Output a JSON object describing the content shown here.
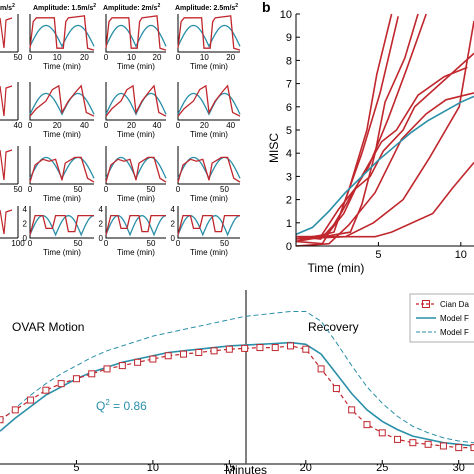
{
  "colors": {
    "data": "#c0272d",
    "model": "#2a8fa8",
    "axis": "#000000",
    "vline": "#555555"
  },
  "panel_a": {
    "column_titles": [
      "Amplitude: 1.5m/s",
      "Amplitude: 2m/s",
      "Amplitude: 2.5m/s"
    ],
    "title_suffix": "2",
    "first_title_fragment": "m/s",
    "xlabel": "Time (min)",
    "rows": [
      {
        "left_ytick": "",
        "left_xtick": "50",
        "xticks": [
          [
            "0",
            "10",
            "20"
          ],
          [
            "0",
            "10",
            "20"
          ],
          [
            "0",
            "10",
            "20"
          ]
        ],
        "yticks": []
      },
      {
        "left_ytick": "",
        "left_xtick": "40",
        "xticks": [
          [
            "0",
            "20",
            "40"
          ],
          [
            "0",
            "20",
            "40"
          ],
          [
            "0",
            "20",
            "40"
          ]
        ],
        "yticks": []
      },
      {
        "left_ytick": "",
        "left_xtick": "50",
        "xticks": [
          [
            "0",
            "50"
          ],
          [
            "0",
            "50"
          ],
          [
            "0",
            "50"
          ]
        ],
        "yticks": []
      },
      {
        "left_ytick": "",
        "left_xtick": "100",
        "xticks": [
          [
            "0",
            "50"
          ],
          [
            "0",
            "50"
          ],
          [
            "0",
            "50"
          ]
        ],
        "yticks": [
          [
            "4",
            "2",
            "0"
          ],
          [
            "4",
            "2",
            "0"
          ],
          [
            "4",
            "2",
            "0"
          ]
        ]
      }
    ]
  },
  "panel_b": {
    "letter": "b",
    "ylabel": "MISC",
    "xlabel": "Time (min)",
    "yticks": [
      "0",
      "1",
      "2",
      "3",
      "4",
      "5",
      "6",
      "7",
      "8",
      "9",
      "10"
    ],
    "xticks": [
      "5",
      "10"
    ]
  },
  "panel_c": {
    "phase_labels": [
      "OVAR Motion",
      "Recovery"
    ],
    "q2_label": "Q",
    "q2_sup": "2",
    "q2_value": " = 0.86",
    "xlabel": "Minutes",
    "xticks": [
      "5",
      "10",
      "15",
      "20",
      "25",
      "30"
    ],
    "legend": [
      "Cian Da",
      "Model F",
      "Model F"
    ]
  },
  "chart_data": [
    {
      "type": "line",
      "panel": "b",
      "ylabel": "MISC",
      "xlabel": "Time (min)",
      "ylim": [
        0,
        10
      ],
      "xlim": [
        0,
        10.8
      ],
      "series": [
        {
          "values_x": [
            0,
            1.5,
            2.6,
            3.5,
            4.5,
            5.3,
            6.5,
            7.2,
            10.8
          ],
          "values_y": [
            0.4,
            0.4,
            1.6,
            2.4,
            3.0,
            4.1,
            5.0,
            6.0,
            8.3
          ]
        },
        {
          "values_x": [
            0,
            1.5,
            2.4,
            3.6,
            4.4,
            5.6,
            6.7,
            7.9
          ],
          "values_y": [
            0.4,
            0.3,
            1.0,
            2.5,
            3.4,
            5.5,
            7.6,
            10
          ]
        },
        {
          "values_x": [
            0,
            1.9,
            2.9,
            3.9,
            5.2,
            6.1,
            7.4,
            9.0,
            10.4
          ],
          "values_y": [
            0.3,
            0.5,
            1.4,
            2.9,
            4.5,
            5.0,
            6.5,
            7.3,
            7.7
          ]
        },
        {
          "values_x": [
            0,
            1.6,
            2.7,
            4.0,
            5.1,
            6.2
          ],
          "values_y": [
            0.2,
            0.1,
            1.4,
            4.0,
            6.6,
            9.9
          ]
        },
        {
          "values_x": [
            0,
            2.3,
            3.2,
            4.3,
            4.9,
            5.8
          ],
          "values_y": [
            0.2,
            0.6,
            2.4,
            5.0,
            7.4,
            10
          ]
        },
        {
          "values_x": [
            0,
            2.0,
            3.2,
            4.8,
            6.4,
            7.9,
            9.1,
            10.8
          ],
          "values_y": [
            0,
            0.1,
            0.9,
            2.3,
            4.6,
            5.7,
            6.3,
            6.6
          ]
        },
        {
          "values_x": [
            0,
            3.0,
            4.7,
            6.5,
            8.1,
            9.9,
            10.8
          ],
          "values_y": [
            0.3,
            0.4,
            1.0,
            2.0,
            3.8,
            6.0,
            9.7
          ]
        },
        {
          "values_x": [
            0,
            4.8,
            5.8,
            8.3,
            9.5,
            10.8
          ],
          "values_y": [
            0.4,
            0.4,
            0.6,
            1.4,
            2.5,
            3.6
          ]
        },
        {
          "values_x": [
            0,
            3.3,
            4.0,
            4.8,
            5.4,
            6.6,
            7.4
          ],
          "values_y": [
            0.2,
            0.6,
            1.8,
            4.0,
            6.2,
            8.1,
            10
          ]
        }
      ],
      "model_x": [
        0,
        1,
        2,
        3,
        4,
        5,
        6,
        7,
        8,
        9,
        10,
        10.8
      ],
      "model_y": [
        0.5,
        0.8,
        1.5,
        2.3,
        3.0,
        3.7,
        4.3,
        4.9,
        5.4,
        5.8,
        6.2,
        6.45
      ]
    },
    {
      "type": "line",
      "panel": "c",
      "xlabel": "Minutes",
      "xlim": [
        0,
        31
      ],
      "ylim": [
        0,
        1
      ],
      "vline_x": 20,
      "data_x": [
        0,
        1,
        2,
        3,
        4,
        5,
        6,
        7,
        8,
        9,
        10,
        11,
        12,
        13,
        14,
        15,
        16,
        17,
        18,
        19,
        20,
        21,
        22,
        23,
        24,
        25,
        26,
        27,
        28,
        29,
        30,
        31
      ],
      "data_y": [
        0.27,
        0.33,
        0.39,
        0.45,
        0.49,
        0.52,
        0.55,
        0.58,
        0.6,
        0.62,
        0.64,
        0.66,
        0.67,
        0.68,
        0.69,
        0.7,
        0.705,
        0.71,
        0.71,
        0.72,
        0.7,
        0.58,
        0.46,
        0.33,
        0.24,
        0.19,
        0.15,
        0.13,
        0.12,
        0.11,
        0.1,
        0.1
      ],
      "model_solid_y": [
        0.2,
        0.28,
        0.35,
        0.42,
        0.47,
        0.52,
        0.56,
        0.59,
        0.62,
        0.64,
        0.66,
        0.68,
        0.69,
        0.7,
        0.71,
        0.72,
        0.725,
        0.73,
        0.735,
        0.74,
        0.73,
        0.67,
        0.55,
        0.43,
        0.33,
        0.26,
        0.21,
        0.17,
        0.15,
        0.13,
        0.12,
        0.11
      ],
      "model_dashed_y": [
        0.26,
        0.34,
        0.42,
        0.49,
        0.55,
        0.6,
        0.65,
        0.69,
        0.72,
        0.75,
        0.78,
        0.8,
        0.82,
        0.84,
        0.86,
        0.88,
        0.9,
        0.91,
        0.92,
        0.93,
        0.93,
        0.87,
        0.74,
        0.6,
        0.47,
        0.37,
        0.29,
        0.23,
        0.19,
        0.16,
        0.14,
        0.13
      ]
    }
  ]
}
